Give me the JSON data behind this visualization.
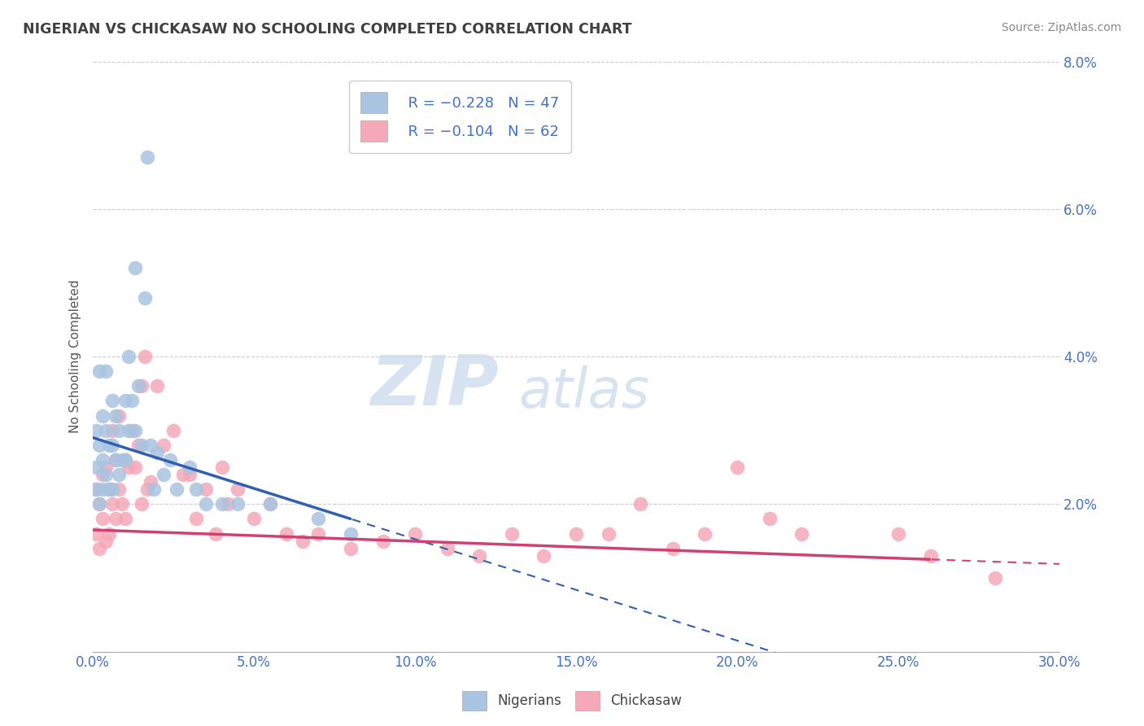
{
  "title": "NIGERIAN VS CHICKASAW NO SCHOOLING COMPLETED CORRELATION CHART",
  "source": "Source: ZipAtlas.com",
  "ylabel": "No Schooling Completed",
  "xlim": [
    0.0,
    0.3
  ],
  "ylim": [
    0.0,
    0.08
  ],
  "xticks": [
    0.0,
    0.05,
    0.1,
    0.15,
    0.2,
    0.25,
    0.3
  ],
  "xticklabels": [
    "0.0%",
    "5.0%",
    "10.0%",
    "15.0%",
    "20.0%",
    "25.0%",
    "30.0%"
  ],
  "yticks": [
    0.0,
    0.02,
    0.04,
    0.06,
    0.08
  ],
  "yticklabels": [
    "",
    "2.0%",
    "4.0%",
    "6.0%",
    "8.0%"
  ],
  "nigerian_color": "#a8c4e0",
  "chickasaw_color": "#f4a8b8",
  "nigerian_line_color": "#3060b0",
  "chickasaw_line_color": "#d04070",
  "watermark_zip": "ZIP",
  "watermark_atlas": "atlas",
  "watermark_color": "#c8d8ec",
  "nigerian_R": -0.228,
  "nigerian_N": 47,
  "chickasaw_R": -0.104,
  "chickasaw_N": 62,
  "nigerian_scatter_x": [
    0.001,
    0.001,
    0.001,
    0.002,
    0.002,
    0.002,
    0.003,
    0.003,
    0.003,
    0.004,
    0.004,
    0.004,
    0.005,
    0.005,
    0.006,
    0.006,
    0.006,
    0.007,
    0.007,
    0.008,
    0.008,
    0.009,
    0.01,
    0.01,
    0.011,
    0.011,
    0.012,
    0.013,
    0.013,
    0.014,
    0.015,
    0.016,
    0.017,
    0.018,
    0.019,
    0.02,
    0.022,
    0.024,
    0.026,
    0.03,
    0.032,
    0.035,
    0.04,
    0.045,
    0.055,
    0.07,
    0.08
  ],
  "nigerian_scatter_y": [
    0.03,
    0.025,
    0.022,
    0.038,
    0.028,
    0.02,
    0.032,
    0.026,
    0.022,
    0.038,
    0.03,
    0.024,
    0.028,
    0.022,
    0.034,
    0.028,
    0.022,
    0.032,
    0.026,
    0.03,
    0.024,
    0.026,
    0.034,
    0.026,
    0.04,
    0.03,
    0.034,
    0.052,
    0.03,
    0.036,
    0.028,
    0.048,
    0.067,
    0.028,
    0.022,
    0.027,
    0.024,
    0.026,
    0.022,
    0.025,
    0.022,
    0.02,
    0.02,
    0.02,
    0.02,
    0.018,
    0.016
  ],
  "chickasaw_scatter_x": [
    0.001,
    0.001,
    0.002,
    0.002,
    0.003,
    0.003,
    0.004,
    0.004,
    0.005,
    0.005,
    0.006,
    0.006,
    0.007,
    0.007,
    0.008,
    0.008,
    0.009,
    0.01,
    0.01,
    0.011,
    0.012,
    0.013,
    0.014,
    0.015,
    0.015,
    0.016,
    0.017,
    0.018,
    0.02,
    0.022,
    0.025,
    0.028,
    0.03,
    0.032,
    0.035,
    0.038,
    0.04,
    0.042,
    0.045,
    0.05,
    0.055,
    0.06,
    0.065,
    0.07,
    0.08,
    0.09,
    0.1,
    0.11,
    0.12,
    0.13,
    0.14,
    0.15,
    0.16,
    0.17,
    0.18,
    0.19,
    0.2,
    0.21,
    0.22,
    0.25,
    0.26,
    0.28
  ],
  "chickasaw_scatter_y": [
    0.016,
    0.022,
    0.02,
    0.014,
    0.024,
    0.018,
    0.025,
    0.015,
    0.022,
    0.016,
    0.03,
    0.02,
    0.026,
    0.018,
    0.032,
    0.022,
    0.02,
    0.026,
    0.018,
    0.025,
    0.03,
    0.025,
    0.028,
    0.036,
    0.02,
    0.04,
    0.022,
    0.023,
    0.036,
    0.028,
    0.03,
    0.024,
    0.024,
    0.018,
    0.022,
    0.016,
    0.025,
    0.02,
    0.022,
    0.018,
    0.02,
    0.016,
    0.015,
    0.016,
    0.014,
    0.015,
    0.016,
    0.014,
    0.013,
    0.016,
    0.013,
    0.016,
    0.016,
    0.02,
    0.014,
    0.016,
    0.025,
    0.018,
    0.016,
    0.016,
    0.013,
    0.01
  ],
  "nig_line_x0": 0.0,
  "nig_line_y0": 0.029,
  "nig_line_x1": 0.08,
  "nig_line_y1": 0.018,
  "chick_line_x0": 0.0,
  "chick_line_y0": 0.0165,
  "chick_line_x1": 0.26,
  "chick_line_y1": 0.0125
}
